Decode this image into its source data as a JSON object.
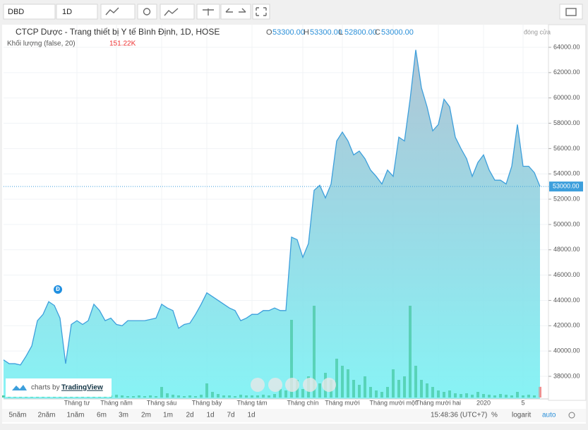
{
  "toolbar": {
    "symbol": "DBD",
    "interval": "1D"
  },
  "legend": {
    "title": "CTCP Dược - Trang thiết bị Y tế Bình Định, 1D, HOSE",
    "o_label": "O",
    "open": "53300.00",
    "h_label": "H",
    "high": "53300.00",
    "l_label": "L",
    "low": "52800.00",
    "c_label": "C",
    "close": "53000.00",
    "status": "đóng cửa",
    "volume_label": "Khối lượng (false, 20)",
    "volume": "151.22K"
  },
  "chart_data": {
    "type": "area",
    "categories": [
      null,
      null,
      null,
      null,
      null,
      null,
      null,
      null,
      null,
      null,
      null,
      null,
      null,
      "Tháng tư",
      null,
      null,
      null,
      null,
      null,
      null,
      "Tháng năm",
      null,
      null,
      null,
      null,
      null,
      null,
      null,
      "Tháng sáu",
      null,
      null,
      null,
      null,
      null,
      null,
      null,
      "Tháng bảy",
      null,
      null,
      null,
      null,
      null,
      null,
      null,
      "Tháng tám",
      null,
      null,
      null,
      null,
      null,
      null,
      null,
      null,
      "Tháng chín",
      null,
      null,
      null,
      null,
      null,
      null,
      "Tháng mười",
      null,
      null,
      null,
      null,
      null,
      null,
      null,
      null,
      "Tháng mười một",
      null,
      null,
      null,
      null,
      null,
      null,
      null,
      "Tháng mười hai",
      null,
      null,
      null,
      null,
      null,
      null,
      null,
      "2020",
      null,
      null,
      null,
      null,
      null,
      null,
      "5",
      null,
      null,
      null
    ],
    "values": [
      39300,
      39000,
      39000,
      38900,
      39600,
      40400,
      42400,
      42900,
      43900,
      43600,
      42600,
      39000,
      42100,
      42400,
      42100,
      42400,
      43700,
      43200,
      42400,
      42600,
      42100,
      42000,
      42400,
      42400,
      42400,
      42400,
      42500,
      42600,
      43700,
      43400,
      43200,
      41800,
      42100,
      42200,
      42900,
      43700,
      44600,
      44300,
      44000,
      43700,
      43400,
      43200,
      42400,
      42600,
      42900,
      42900,
      43200,
      43200,
      43400,
      43200,
      43200,
      49000,
      48800,
      47400,
      48500,
      52700,
      53100,
      52100,
      53200,
      56600,
      57300,
      56600,
      55500,
      55800,
      55200,
      54300,
      53800,
      53200,
      54300,
      53800,
      56900,
      56600,
      59900,
      63800,
      60800,
      59300,
      57400,
      57900,
      59900,
      59300,
      56900,
      56000,
      55200,
      53800,
      54900,
      55500,
      54300,
      53500,
      53500,
      53200,
      54600,
      57900,
      54600,
      54600,
      54100,
      53000
    ],
    "volume": [
      30000,
      20000,
      20000,
      20000,
      30000,
      20000,
      40000,
      30000,
      20000,
      30000,
      20000,
      50000,
      30000,
      40000,
      30000,
      30000,
      20000,
      50000,
      80000,
      30000,
      40000,
      30000,
      20000,
      20000,
      30000,
      20000,
      30000,
      20000,
      150000,
      60000,
      40000,
      30000,
      20000,
      30000,
      20000,
      40000,
      200000,
      80000,
      50000,
      30000,
      30000,
      20000,
      40000,
      30000,
      30000,
      30000,
      40000,
      30000,
      50000,
      120000,
      100000,
      1100000,
      250000,
      120000,
      300000,
      1300000,
      200000,
      350000,
      250000,
      550000,
      450000,
      400000,
      250000,
      180000,
      300000,
      150000,
      100000,
      80000,
      150000,
      400000,
      250000,
      300000,
      1300000,
      450000,
      250000,
      200000,
      150000,
      100000,
      80000,
      100000,
      60000,
      50000,
      60000,
      40000,
      80000,
      50000,
      40000,
      30000,
      50000,
      40000,
      30000,
      80000,
      30000,
      40000,
      30000,
      151220
    ],
    "color": "#3d9fdc",
    "volume_color": "#3dbf8e",
    "ylim": [
      36215,
      65785
    ],
    "yticks": [
      {
        "value": 38000,
        "label": "38000.00"
      },
      {
        "value": 40000,
        "label": "40000.00"
      },
      {
        "value": 42000,
        "label": "42000.00"
      },
      {
        "value": 44000,
        "label": "44000.00"
      },
      {
        "value": 46000,
        "label": "46000.00"
      },
      {
        "value": 48000,
        "label": "48000.00"
      },
      {
        "value": 50000,
        "label": "50000.00"
      },
      {
        "value": 52000,
        "label": "52000.00"
      },
      {
        "value": 54000,
        "label": "54000.00"
      },
      {
        "value": 56000,
        "label": "56000.00"
      },
      {
        "value": 58000,
        "label": "58000.00"
      },
      {
        "value": 60000,
        "label": "60000.00"
      },
      {
        "value": 62000,
        "label": "62000.00"
      },
      {
        "value": 64000,
        "label": "64000.00"
      }
    ],
    "volume_ylim": [
      0,
      1500000
    ],
    "last_price": {
      "value": 53000,
      "label": "53000.00"
    },
    "marker": "Đ",
    "grid": true
  },
  "branding": {
    "prefix": "charts by",
    "name": "TradingView"
  },
  "periods": [
    "5năm",
    "2năm",
    "1năm",
    "6m",
    "3m",
    "2m",
    "1m",
    "2d",
    "1d",
    "7d",
    "1d"
  ],
  "status_bar": {
    "time": "15:48:36 (UTC+7)",
    "percent": "%",
    "log": "logarit",
    "auto": "auto"
  }
}
